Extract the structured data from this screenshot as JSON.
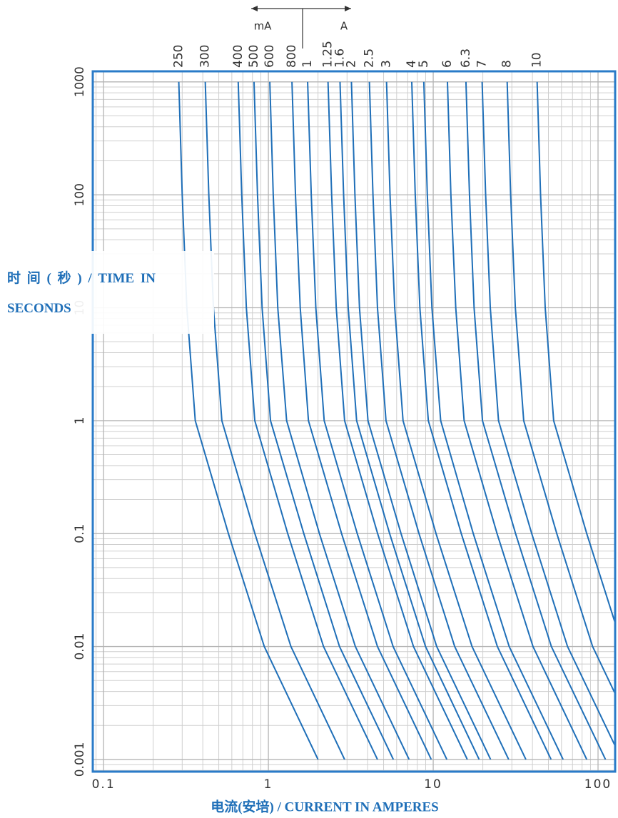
{
  "chart_data": {
    "type": "line",
    "x_label": "电流(安培) / CURRENT IN AMPERES",
    "y_label": "时 间 ( 秒 ) / TIME IN SECONDS",
    "unit_left": "mA",
    "unit_right": "A",
    "xscale": "log",
    "yscale": "log",
    "grid": true,
    "minor_grid": true,
    "xlim": [
      0.086,
      127
    ],
    "ylim": [
      0.00078,
      1240
    ],
    "xticks": [
      0.1,
      1,
      10,
      100
    ],
    "yticks": [
      1000,
      100,
      10,
      1,
      0.1,
      0.01,
      0.001
    ],
    "color": "#1f6fb8",
    "series": [
      {
        "name": "250",
        "x": [
          0.286,
          0.3,
          0.32,
          0.36,
          0.572,
          0.944,
          2.0
        ],
        "values": [
          1000,
          100,
          10,
          1,
          0.1,
          0.01,
          0.001
        ]
      },
      {
        "name": "300",
        "x": [
          0.414,
          0.435,
          0.464,
          0.522,
          0.828,
          1.37,
          2.9
        ],
        "values": [
          1000,
          100,
          10,
          1,
          0.1,
          0.01,
          0.001
        ]
      },
      {
        "name": "400",
        "x": [
          0.656,
          0.689,
          0.735,
          0.827,
          1.31,
          2.16,
          4.59
        ],
        "values": [
          1000,
          100,
          10,
          1,
          0.1,
          0.01,
          0.001
        ]
      },
      {
        "name": "500",
        "x": [
          0.818,
          0.859,
          0.916,
          1.03,
          1.64,
          2.7,
          5.73
        ],
        "values": [
          1000,
          100,
          10,
          1,
          0.1,
          0.01,
          0.001
        ]
      },
      {
        "name": "600",
        "x": [
          1.02,
          1.07,
          1.14,
          1.29,
          2.04,
          3.37,
          7.14
        ],
        "values": [
          1000,
          100,
          10,
          1,
          0.1,
          0.01,
          0.001
        ]
      },
      {
        "name": "800",
        "x": [
          1.39,
          1.46,
          1.56,
          1.75,
          2.78,
          4.59,
          9.73
        ],
        "values": [
          1000,
          100,
          10,
          1,
          0.1,
          0.01,
          0.001
        ]
      },
      {
        "name": "1",
        "x": [
          1.73,
          1.82,
          1.94,
          2.18,
          3.46,
          5.71,
          12.1
        ],
        "values": [
          1000,
          100,
          10,
          1,
          0.1,
          0.01,
          0.001
        ]
      },
      {
        "name": "1.25",
        "x": [
          2.3,
          2.42,
          2.58,
          2.9,
          4.6,
          7.59,
          16.1
        ],
        "values": [
          1000,
          100,
          10,
          1,
          0.1,
          0.01,
          0.001
        ]
      },
      {
        "name": "1.6",
        "x": [
          2.72,
          2.86,
          3.05,
          3.43,
          5.44,
          8.98,
          19.0
        ],
        "values": [
          1000,
          100,
          10,
          1,
          0.1,
          0.01,
          0.001
        ]
      },
      {
        "name": "2",
        "x": [
          3.19,
          3.35,
          3.57,
          4.02,
          6.38,
          10.5,
          22.3
        ],
        "values": [
          1000,
          100,
          10,
          1,
          0.1,
          0.01,
          0.001
        ]
      },
      {
        "name": "2.5",
        "x": [
          4.1,
          4.31,
          4.59,
          5.17,
          8.2,
          13.5,
          28.7
        ],
        "values": [
          1000,
          100,
          10,
          1,
          0.1,
          0.01,
          0.001
        ]
      },
      {
        "name": "3",
        "x": [
          5.21,
          5.47,
          5.84,
          6.56,
          10.4,
          17.2,
          36.5
        ],
        "values": [
          1000,
          100,
          10,
          1,
          0.1,
          0.01,
          0.001
        ]
      },
      {
        "name": "4",
        "x": [
          7.41,
          7.78,
          8.3,
          9.34,
          14.8,
          24.5,
          51.9
        ],
        "values": [
          1000,
          100,
          10,
          1,
          0.1,
          0.01,
          0.001
        ]
      },
      {
        "name": "5",
        "x": [
          8.77,
          9.21,
          9.82,
          11.1,
          17.5,
          28.9,
          61.4
        ],
        "values": [
          1000,
          100,
          10,
          1,
          0.1,
          0.01,
          0.001
        ]
      },
      {
        "name": "6",
        "x": [
          12.2,
          12.8,
          13.7,
          15.4,
          24.4,
          40.3,
          85.4
        ],
        "values": [
          1000,
          100,
          10,
          1,
          0.1,
          0.01,
          0.001
        ]
      },
      {
        "name": "6.3",
        "x": [
          15.8,
          16.6,
          17.7,
          19.9,
          31.6,
          52.1,
          111
        ],
        "values": [
          1000,
          100,
          10,
          1,
          0.1,
          0.01,
          0.001
        ]
      },
      {
        "name": "7",
        "x": [
          19.8,
          20.8,
          22.2,
          24.9,
          39.6,
          65.3,
          139
        ],
        "values": [
          1000,
          100,
          10,
          1,
          0.1,
          0.01,
          0.001
        ]
      },
      {
        "name": "8",
        "x": [
          28.1,
          29.5,
          31.5,
          35.4,
          56.2,
          92.7,
          197
        ],
        "values": [
          1000,
          100,
          10,
          1,
          0.1,
          0.01,
          0.001
        ]
      },
      {
        "name": "10",
        "x": [
          42.7,
          44.8,
          47.8,
          53.8,
          85.4,
          141,
          299
        ],
        "values": [
          1000,
          100,
          10,
          1,
          0.1,
          0.01,
          0.001
        ]
      }
    ]
  }
}
